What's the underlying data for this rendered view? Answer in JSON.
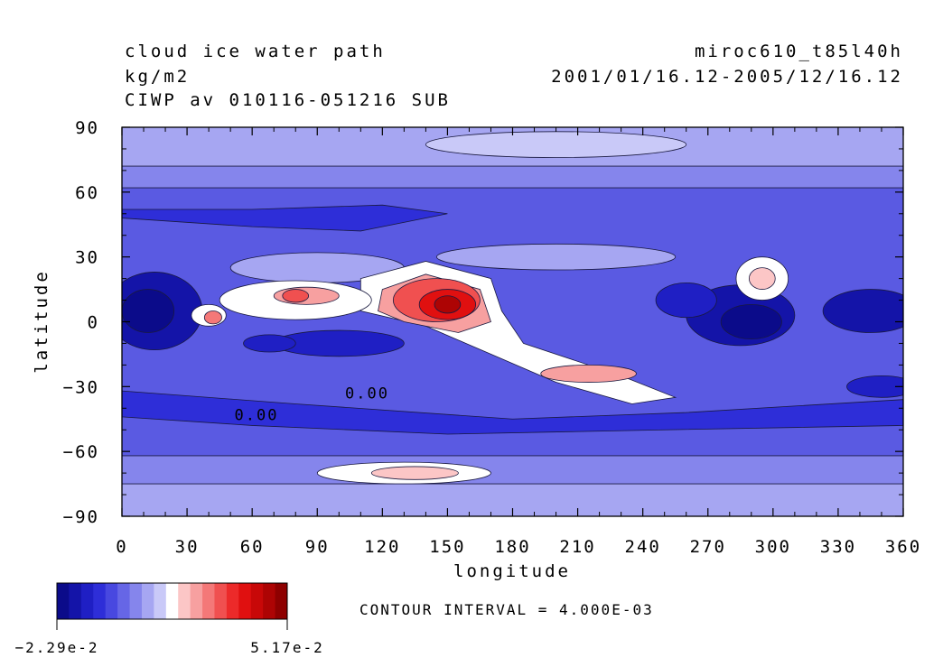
{
  "header": {
    "title": "cloud ice water path",
    "units": "kg/m2",
    "variable": "CIWP av 010116-051216 SUB",
    "model": "miroc610_t85l40h",
    "period": "2001/01/16.12-2005/12/16.12"
  },
  "chart_data": {
    "type": "heatmap",
    "title": "cloud ice water path",
    "xlabel": "longitude",
    "ylabel": "latitude",
    "xlim": [
      0,
      360
    ],
    "ylim": [
      -90,
      90
    ],
    "xticks": [
      0,
      30,
      60,
      90,
      120,
      150,
      180,
      210,
      240,
      270,
      300,
      330,
      360
    ],
    "yticks": [
      -90,
      -60,
      -30,
      0,
      30,
      60,
      90
    ],
    "xtick_labels": [
      "0",
      "30",
      "60",
      "90",
      "120",
      "150",
      "180",
      "210",
      "240",
      "270",
      "300",
      "330",
      "360"
    ],
    "ytick_labels": [
      "−90",
      "−60",
      "−30",
      "0",
      "30",
      "60",
      "90"
    ],
    "contour_labels": [
      {
        "text": "0.00",
        "lon": 113,
        "lat": -33
      },
      {
        "text": "0.00",
        "lon": 62,
        "lat": -43
      }
    ],
    "contour_interval_text": "CONTOUR INTERVAL = 4.000E-03",
    "colorbar": {
      "min_label": "−2.29e-2",
      "max_label": "5.17e-2",
      "colors": [
        "#0b0b8a",
        "#1414a8",
        "#1f1fc4",
        "#2e2ed8",
        "#4848e0",
        "#6666e6",
        "#8585ec",
        "#a6a6f2",
        "#c9c9f8",
        "#ffffff",
        "#fcc6c6",
        "#f7a0a0",
        "#f47878",
        "#f05050",
        "#ec2a2a",
        "#e01010",
        "#c80808",
        "#ad0404",
        "#8e0000"
      ]
    }
  }
}
